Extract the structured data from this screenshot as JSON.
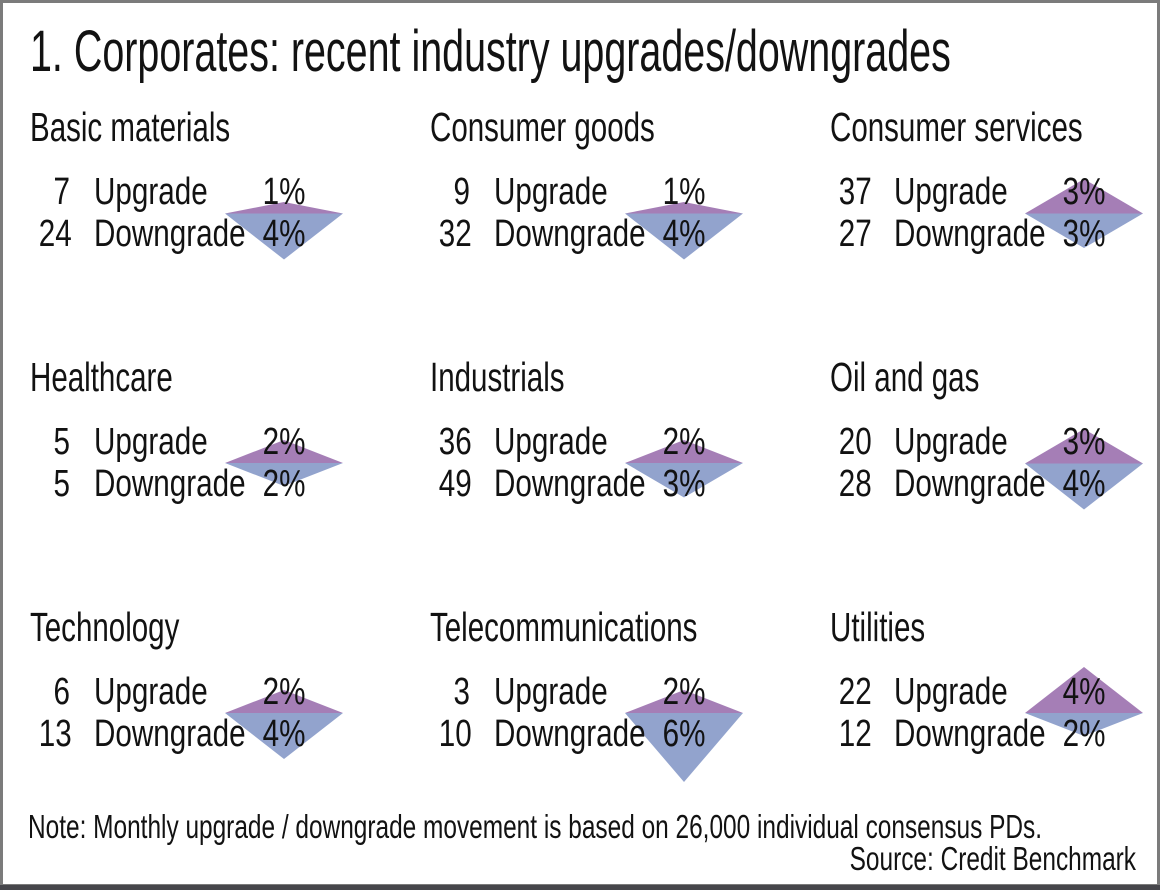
{
  "title": "1. Corporates: recent industry upgrades/downgrades",
  "note": "Note: Monthly upgrade / downgrade movement is based on 26,000 individual consensus PDs.",
  "source": "Source: Credit Benchmark",
  "labels": {
    "upgrade": "Upgrade",
    "downgrade": "Downgrade"
  },
  "colors": {
    "upgrade_triangle": "#a57eb6",
    "downgrade_triangle": "#92a3cd",
    "frame": "#7b7b7b",
    "bottom_bar": "#46464b",
    "text": "#121212"
  },
  "chart_data": {
    "type": "table",
    "glyph": "diamond (up-triangle = upgrade %, down-triangle = downgrade %, height proportional to percent)",
    "columns": [
      "industry",
      "upgrade_count",
      "upgrade_pct",
      "downgrade_count",
      "downgrade_pct"
    ],
    "layout": "3x3 grid of industry panels",
    "panels": [
      {
        "industry": "Basic materials",
        "upgrade_count": "7",
        "upgrade_pct": 1,
        "upgrade_pct_label": "1%",
        "downgrade_count": "24",
        "downgrade_pct": 4,
        "downgrade_pct_label": "4%"
      },
      {
        "industry": "Consumer goods",
        "upgrade_count": "9",
        "upgrade_pct": 1,
        "upgrade_pct_label": "1%",
        "downgrade_count": "32",
        "downgrade_pct": 4,
        "downgrade_pct_label": "4%"
      },
      {
        "industry": "Consumer services",
        "upgrade_count": "37",
        "upgrade_pct": 3,
        "upgrade_pct_label": "3%",
        "downgrade_count": "27",
        "downgrade_pct": 3,
        "downgrade_pct_label": "3%"
      },
      {
        "industry": "Healthcare",
        "upgrade_count": "5",
        "upgrade_pct": 2,
        "upgrade_pct_label": "2%",
        "downgrade_count": "5",
        "downgrade_pct": 2,
        "downgrade_pct_label": "2%"
      },
      {
        "industry": "Industrials",
        "upgrade_count": "36",
        "upgrade_pct": 2,
        "upgrade_pct_label": "2%",
        "downgrade_count": "49",
        "downgrade_pct": 3,
        "downgrade_pct_label": "3%"
      },
      {
        "industry": "Oil and gas",
        "upgrade_count": "20",
        "upgrade_pct": 3,
        "upgrade_pct_label": "3%",
        "downgrade_count": "28",
        "downgrade_pct": 4,
        "downgrade_pct_label": "4%"
      },
      {
        "industry": "Technology",
        "upgrade_count": "6",
        "upgrade_pct": 2,
        "upgrade_pct_label": "2%",
        "downgrade_count": "13",
        "downgrade_pct": 4,
        "downgrade_pct_label": "4%"
      },
      {
        "industry": "Telecommunications",
        "upgrade_count": "3",
        "upgrade_pct": 2,
        "upgrade_pct_label": "2%",
        "downgrade_count": "10",
        "downgrade_pct": 6,
        "downgrade_pct_label": "6%"
      },
      {
        "industry": "Utilities",
        "upgrade_count": "22",
        "upgrade_pct": 4,
        "upgrade_pct_label": "4%",
        "downgrade_count": "12",
        "downgrade_pct": 2,
        "downgrade_pct_label": "2%"
      }
    ]
  }
}
